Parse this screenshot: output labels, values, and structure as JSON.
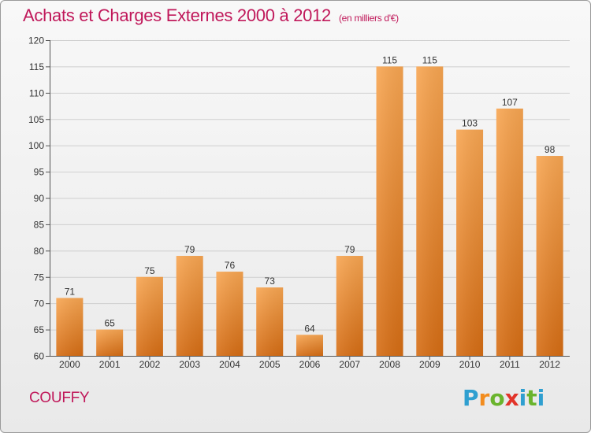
{
  "title": "Achats et Charges Externes 2000 à 2012",
  "subtitle": "(en milliers d'€)",
  "commune": "COUFFY",
  "logo": {
    "text": "Proxiti",
    "colors": [
      "#2f9fd0",
      "#f28c1e",
      "#6ab42d",
      "#e2342a",
      "#2f9fd0",
      "#6ab42d"
    ]
  },
  "colors": {
    "title": "#c0185a",
    "bar_light": "#f7a452",
    "bar_dark": "#d86f16"
  },
  "chart_data": {
    "type": "bar",
    "categories": [
      "2000",
      "2001",
      "2002",
      "2003",
      "2004",
      "2005",
      "2006",
      "2007",
      "2008",
      "2009",
      "2010",
      "2011",
      "2012"
    ],
    "values": [
      71,
      65,
      75,
      79,
      76,
      73,
      64,
      79,
      115,
      115,
      103,
      107,
      98
    ],
    "ylim": [
      60,
      120
    ],
    "yticks": [
      60,
      65,
      70,
      75,
      80,
      85,
      90,
      95,
      100,
      105,
      110,
      115,
      120
    ],
    "grid": true
  }
}
